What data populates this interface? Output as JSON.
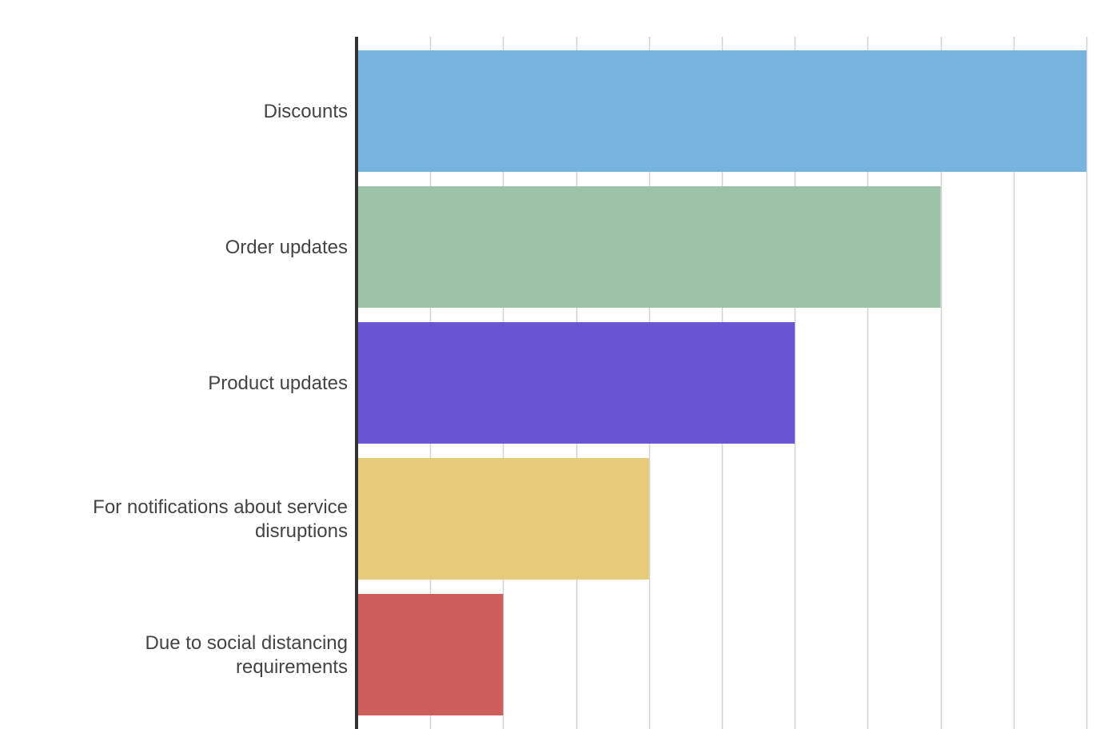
{
  "chart_data": {
    "type": "bar",
    "orientation": "horizontal",
    "title": "",
    "xlabel": "",
    "ylabel": "",
    "categories": [
      "Discounts",
      "Order updates",
      "Product updates",
      "For notifications about service disruptions",
      "Due to social distancing requirements"
    ],
    "values": [
      10,
      8,
      6,
      4,
      2
    ],
    "colors": [
      "#76b4e0",
      "#9cc3a8",
      "#6a56d4",
      "#e8cb7a",
      "#cc5e5c"
    ],
    "xlim": [
      0,
      10
    ],
    "x_grid_step": 1,
    "grid": true,
    "tick_labels_visible": false,
    "legend": "none"
  }
}
